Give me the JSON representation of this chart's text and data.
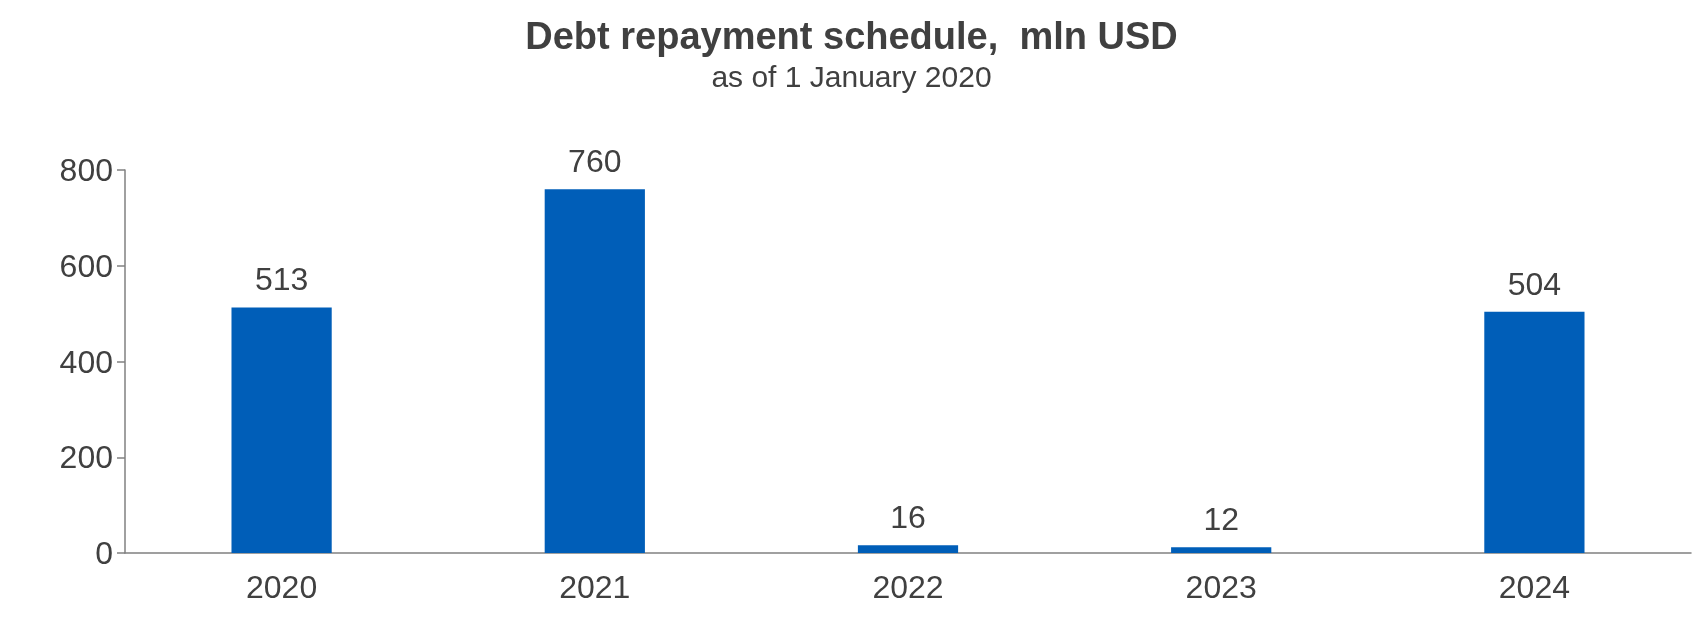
{
  "chart_data": {
    "type": "bar",
    "title": "Debt repayment schedule,  mln USD",
    "subtitle": "as of 1 January 2020",
    "categories": [
      "2020",
      "2021",
      "2022",
      "2023",
      "2024"
    ],
    "values": [
      513,
      760,
      16,
      12,
      504
    ],
    "color": "#005eb8",
    "ylim": [
      0,
      800
    ],
    "yticks": [
      0,
      200,
      400,
      600,
      800
    ],
    "grid": false,
    "data_labels": true
  }
}
